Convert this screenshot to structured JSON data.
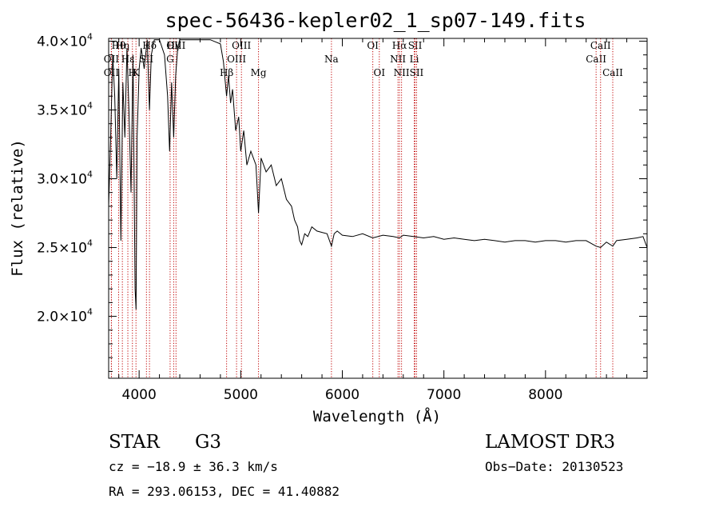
{
  "chart_data": {
    "type": "line",
    "title": "spec-56436-kepler02_1_sp07-149.fits",
    "xlabel": "Wavelength (Å)",
    "ylabel": "Flux (relative)",
    "xlim": [
      3700,
      9000
    ],
    "ylim": [
      15500,
      40200
    ],
    "x_ticks": [
      {
        "value": 4000,
        "label": "4000"
      },
      {
        "value": 5000,
        "label": "5000"
      },
      {
        "value": 6000,
        "label": "6000"
      },
      {
        "value": 7000,
        "label": "7000"
      },
      {
        "value": 8000,
        "label": "8000"
      }
    ],
    "y_ticks": [
      {
        "value": 20000,
        "mant": "2.0",
        "mid": "×10",
        "exp": "4"
      },
      {
        "value": 25000,
        "mant": "2.5",
        "mid": "×10",
        "exp": "4"
      },
      {
        "value": 30000,
        "mant": "3.0",
        "mid": "×10",
        "exp": "4"
      },
      {
        "value": 35000,
        "mant": "3.5",
        "mid": "×10",
        "exp": "4"
      },
      {
        "value": 40000,
        "mant": "4.0",
        "mid": "×10",
        "exp": "4"
      }
    ],
    "line_color": "#000000",
    "marker_color": "#c00000",
    "spectrum": [
      [
        3700,
        28000
      ],
      [
        3720,
        33000
      ],
      [
        3740,
        39000
      ],
      [
        3760,
        36000
      ],
      [
        3780,
        30000
      ],
      [
        3800,
        38000
      ],
      [
        3820,
        25500
      ],
      [
        3840,
        37000
      ],
      [
        3860,
        33000
      ],
      [
        3880,
        39500
      ],
      [
        3900,
        35000
      ],
      [
        3920,
        29000
      ],
      [
        3940,
        39000
      ],
      [
        3960,
        22000
      ],
      [
        3970,
        20500
      ],
      [
        3980,
        33000
      ],
      [
        4000,
        38000
      ],
      [
        4020,
        39500
      ],
      [
        4050,
        38000
      ],
      [
        4080,
        40100
      ],
      [
        4102,
        35000
      ],
      [
        4120,
        39000
      ],
      [
        4150,
        40100
      ],
      [
        4200,
        40100
      ],
      [
        4250,
        39000
      ],
      [
        4280,
        36000
      ],
      [
        4300,
        32000
      ],
      [
        4320,
        37000
      ],
      [
        4340,
        33000
      ],
      [
        4360,
        37500
      ],
      [
        4380,
        39500
      ],
      [
        4400,
        40100
      ],
      [
        4500,
        40100
      ],
      [
        4600,
        40100
      ],
      [
        4700,
        40100
      ],
      [
        4800,
        39800
      ],
      [
        4830,
        38500
      ],
      [
        4861,
        36000
      ],
      [
        4880,
        37500
      ],
      [
        4900,
        35500
      ],
      [
        4920,
        36500
      ],
      [
        4950,
        33500
      ],
      [
        4980,
        34500
      ],
      [
        5000,
        32000
      ],
      [
        5030,
        33500
      ],
      [
        5060,
        31000
      ],
      [
        5100,
        32000
      ],
      [
        5150,
        31000
      ],
      [
        5175,
        27500
      ],
      [
        5200,
        31500
      ],
      [
        5250,
        30500
      ],
      [
        5300,
        31000
      ],
      [
        5350,
        29500
      ],
      [
        5400,
        30000
      ],
      [
        5450,
        28500
      ],
      [
        5500,
        28000
      ],
      [
        5530,
        27000
      ],
      [
        5560,
        26500
      ],
      [
        5580,
        25500
      ],
      [
        5600,
        25200
      ],
      [
        5630,
        26000
      ],
      [
        5660,
        25800
      ],
      [
        5700,
        26500
      ],
      [
        5750,
        26200
      ],
      [
        5800,
        26100
      ],
      [
        5850,
        26000
      ],
      [
        5893,
        25100
      ],
      [
        5920,
        26000
      ],
      [
        5950,
        26200
      ],
      [
        6000,
        25900
      ],
      [
        6100,
        25800
      ],
      [
        6200,
        26000
      ],
      [
        6300,
        25700
      ],
      [
        6400,
        25900
      ],
      [
        6500,
        25800
      ],
      [
        6563,
        25700
      ],
      [
        6600,
        25900
      ],
      [
        6700,
        25800
      ],
      [
        6800,
        25700
      ],
      [
        6900,
        25800
      ],
      [
        7000,
        25600
      ],
      [
        7100,
        25700
      ],
      [
        7200,
        25600
      ],
      [
        7300,
        25500
      ],
      [
        7400,
        25600
      ],
      [
        7500,
        25500
      ],
      [
        7600,
        25400
      ],
      [
        7700,
        25500
      ],
      [
        7800,
        25500
      ],
      [
        7900,
        25400
      ],
      [
        8000,
        25500
      ],
      [
        8100,
        25500
      ],
      [
        8200,
        25400
      ],
      [
        8300,
        25500
      ],
      [
        8400,
        25500
      ],
      [
        8498,
        25100
      ],
      [
        8542,
        25000
      ],
      [
        8600,
        25400
      ],
      [
        8662,
        25100
      ],
      [
        8700,
        25500
      ],
      [
        8800,
        25600
      ],
      [
        8900,
        25700
      ],
      [
        8960,
        25800
      ],
      [
        9000,
        25000
      ]
    ],
    "line_markers": [
      {
        "label": "OII",
        "wave": 3727,
        "row": 1
      },
      {
        "label": "OII",
        "wave": 3727,
        "row": 2
      },
      {
        "label": "Hθ",
        "wave": 3798,
        "row": 0
      },
      {
        "label": "Hη",
        "wave": 3835,
        "row": 0
      },
      {
        "label": "Hε",
        "wave": 3889,
        "row": 1
      },
      {
        "label": "H",
        "wave": 3934,
        "row": 2
      },
      {
        "label": "K",
        "wave": 3969,
        "row": 2
      },
      {
        "label": "Hδ",
        "wave": 4102,
        "row": 0
      },
      {
        "label": "SII",
        "wave": 4072,
        "row": 1
      },
      {
        "label": "Hγ",
        "wave": 4340,
        "row": 0
      },
      {
        "label": "OIII",
        "wave": 4363,
        "row": 0
      },
      {
        "label": "G",
        "wave": 4305,
        "row": 1
      },
      {
        "label": "Hβ",
        "wave": 4861,
        "row": 2
      },
      {
        "label": "OIII",
        "wave": 4959,
        "row": 1
      },
      {
        "label": "OIII",
        "wave": 5007,
        "row": 0
      },
      {
        "label": "Mg",
        "wave": 5175,
        "row": 2
      },
      {
        "label": "Na",
        "wave": 5893,
        "row": 1
      },
      {
        "label": "OI",
        "wave": 6300,
        "row": 0
      },
      {
        "label": "OI",
        "wave": 6364,
        "row": 2
      },
      {
        "label": "NII",
        "wave": 6548,
        "row": 1
      },
      {
        "label": "Hα",
        "wave": 6563,
        "row": 0
      },
      {
        "label": "NII",
        "wave": 6583,
        "row": 2
      },
      {
        "label": "Li",
        "wave": 6708,
        "row": 1
      },
      {
        "label": "SII",
        "wave": 6716,
        "row": 0
      },
      {
        "label": "SII",
        "wave": 6731,
        "row": 2
      },
      {
        "label": "CaII",
        "wave": 8498,
        "row": 1
      },
      {
        "label": "CaII",
        "wave": 8542,
        "row": 0
      },
      {
        "label": "CaII",
        "wave": 8662,
        "row": 2
      }
    ]
  },
  "info": {
    "object_class": "STAR",
    "subclass": "G3",
    "survey": "LAMOST DR3",
    "cz": "cz = −18.9 ± 36.3 km/s",
    "obs_date": "Obs−Date: 20130523",
    "coords": "RA = 293.06153, DEC =  41.40882"
  }
}
